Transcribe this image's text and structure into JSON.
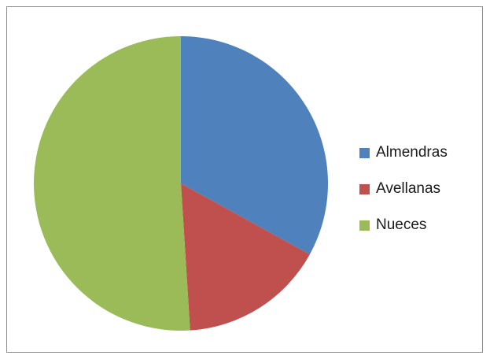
{
  "chart_data": {
    "type": "pie",
    "title": "",
    "categories": [
      "Almendras",
      "Avellanas",
      "Nueces"
    ],
    "values": [
      33,
      16,
      51
    ],
    "colors": [
      "#4F81BD",
      "#C0504D",
      "#9BBB59"
    ],
    "legend_position": "right",
    "start_angle": "top",
    "direction": "clockwise"
  }
}
